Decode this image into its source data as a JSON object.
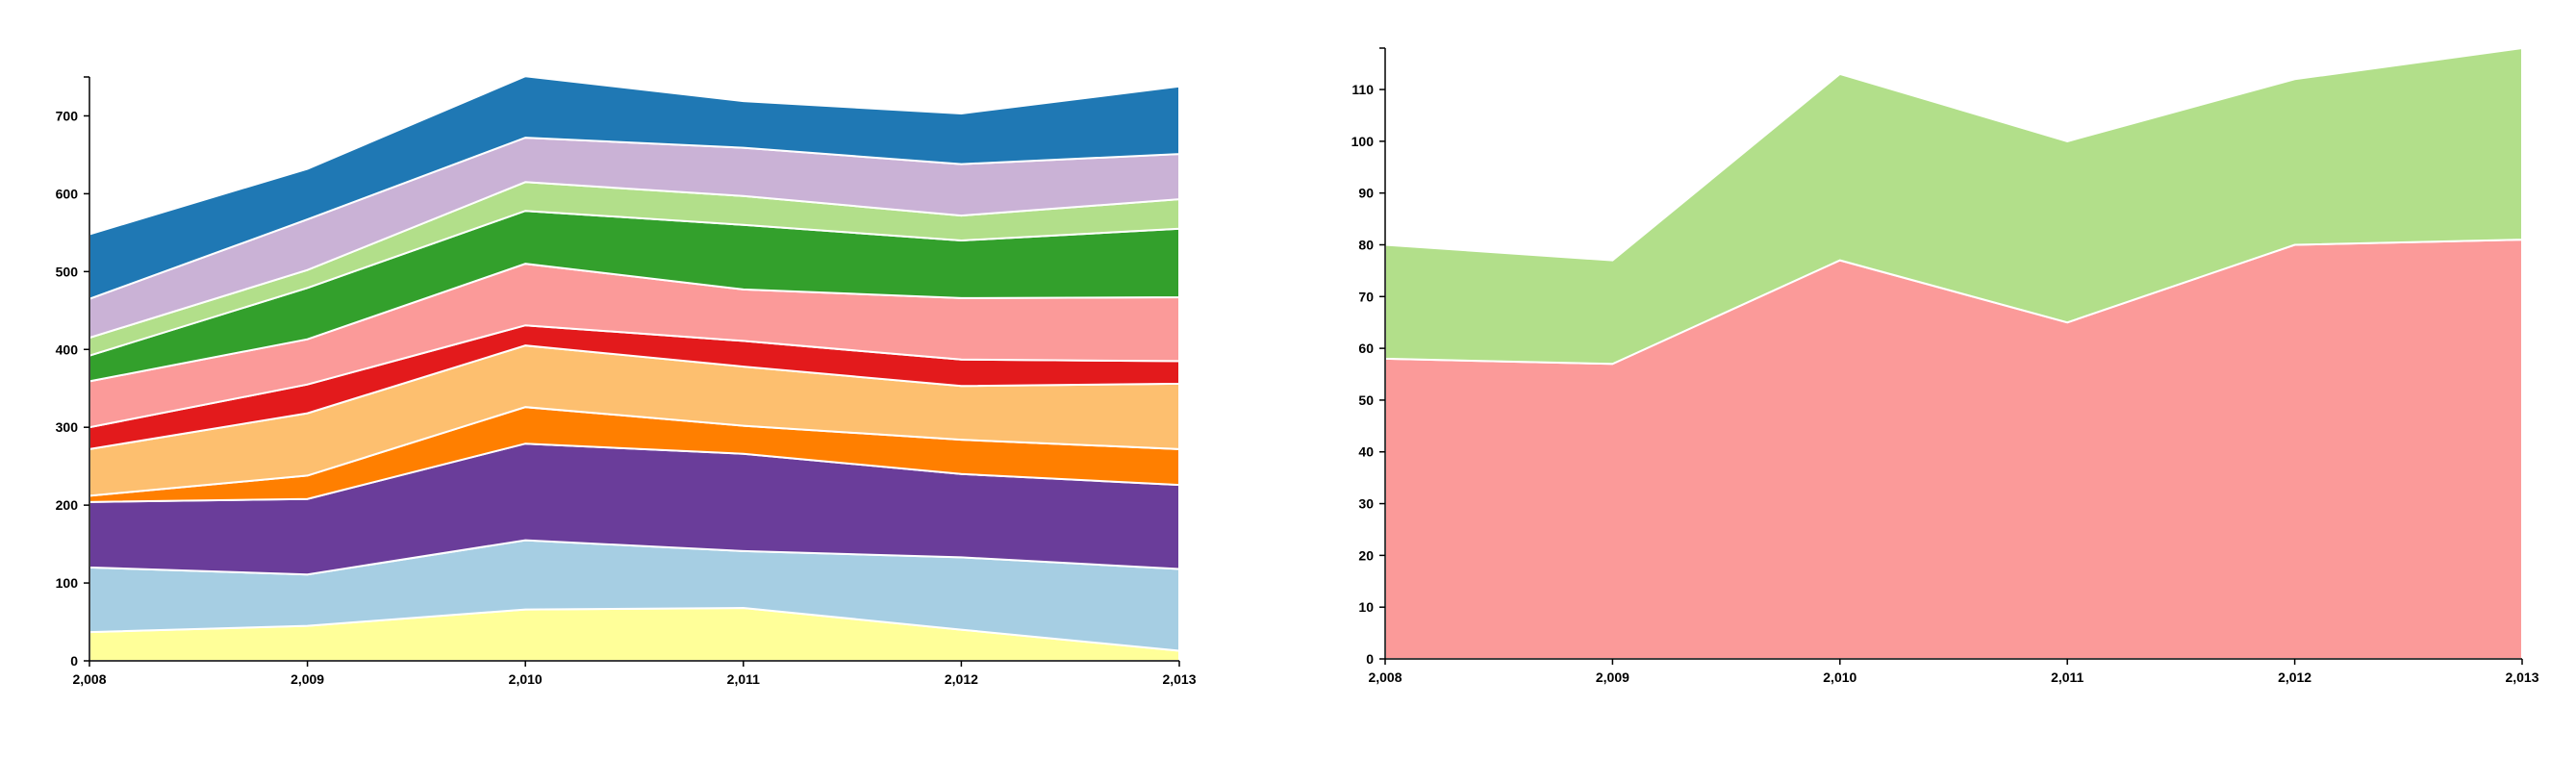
{
  "chart_data": [
    {
      "type": "area",
      "stacked": true,
      "x": [
        2008,
        2009,
        2010,
        2011,
        2012,
        2013
      ],
      "x_tick_labels": [
        "2,008",
        "2,009",
        "2,010",
        "2,011",
        "2,012",
        "2,013"
      ],
      "ylim": [
        0,
        750
      ],
      "y_ticks": [
        0,
        100,
        200,
        300,
        400,
        500,
        600,
        700
      ],
      "y_tick_labels": [
        "0",
        "100",
        "200",
        "300",
        "400",
        "500",
        "600",
        "700"
      ],
      "grid": false,
      "series": [
        {
          "color": "#ffff99",
          "values": [
            37,
            45,
            66,
            68,
            40,
            13
          ]
        },
        {
          "color": "#a6cee3",
          "values": [
            83,
            66,
            89,
            73,
            93,
            105
          ]
        },
        {
          "color": "#6a3d9a",
          "values": [
            84,
            97,
            124,
            125,
            107,
            108
          ]
        },
        {
          "color": "#ff7f00",
          "values": [
            8,
            30,
            47,
            36,
            44,
            46
          ]
        },
        {
          "color": "#fdbf6f",
          "values": [
            60,
            80,
            79,
            76,
            69,
            84
          ]
        },
        {
          "color": "#e31a1c",
          "values": [
            28,
            37,
            26,
            33,
            34,
            29
          ]
        },
        {
          "color": "#fb9a99",
          "values": [
            59,
            58,
            79,
            66,
            79,
            82
          ]
        },
        {
          "color": "#33a02c",
          "values": [
            33,
            66,
            68,
            83,
            74,
            88
          ]
        },
        {
          "color": "#b2df8a",
          "values": [
            23,
            23,
            37,
            37,
            32,
            38
          ]
        },
        {
          "color": "#cab2d6",
          "values": [
            50,
            65,
            57,
            62,
            66,
            58
          ]
        },
        {
          "color": "#1f78b4",
          "values": [
            83,
            65,
            79,
            60,
            65,
            87
          ]
        }
      ]
    },
    {
      "type": "area",
      "stacked": true,
      "x": [
        2008,
        2009,
        2010,
        2011,
        2012,
        2013
      ],
      "x_tick_labels": [
        "2,008",
        "2,009",
        "2,010",
        "2,011",
        "2,012",
        "2,013"
      ],
      "ylim": [
        0,
        118
      ],
      "y_ticks": [
        0,
        10,
        20,
        30,
        40,
        50,
        60,
        70,
        80,
        90,
        100,
        110
      ],
      "y_tick_labels": [
        "0",
        "10",
        "20",
        "30",
        "40",
        "50",
        "60",
        "70",
        "80",
        "90",
        "100",
        "110"
      ],
      "grid": false,
      "series": [
        {
          "color": "#fb9a99",
          "values": [
            58,
            57,
            77,
            65,
            80,
            81
          ]
        },
        {
          "color": "#b2df8a",
          "values": [
            22,
            20,
            36,
            35,
            32,
            37
          ]
        }
      ]
    }
  ]
}
